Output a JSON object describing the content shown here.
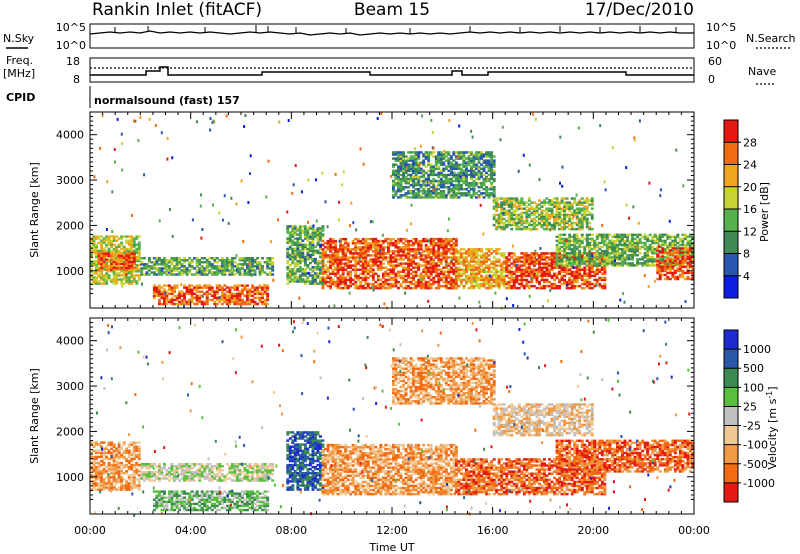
{
  "header": {
    "station": "Rankin Inlet (fitACF)",
    "beam": "Beam 15",
    "date": "17/Dec/2010"
  },
  "summary_panels": {
    "nsky": {
      "label": "N.Sky",
      "ticks": [
        "10^5",
        "10^0"
      ]
    },
    "nsearch": {
      "label": "N.Search",
      "ticks": [
        "10^5",
        "10^0"
      ]
    },
    "freq": {
      "label_line1": "Freq.",
      "label_line2": "[MHz]",
      "ticks": [
        "18",
        "8"
      ]
    },
    "nave": {
      "label": "Nave",
      "ticks": [
        "60",
        "0"
      ]
    },
    "cpid": {
      "label": "CPID",
      "value": "normalsound (fast) 157"
    }
  },
  "chart_data": [
    {
      "type": "heatmap",
      "name": "power",
      "ylabel": "Slant Range [km]",
      "xlabel": "",
      "xlim": [
        "00:00",
        "24:00"
      ],
      "ylim": [
        180,
        4500
      ],
      "yticks": [
        1000,
        2000,
        3000,
        4000
      ],
      "colorbar": {
        "label": "Power [dB]",
        "ticks": [
          4,
          8,
          12,
          16,
          20,
          24,
          28
        ],
        "range": [
          0,
          32
        ],
        "colors": [
          "#0a1fe0",
          "#2a55b0",
          "#3f8a55",
          "#55b04d",
          "#c8d232",
          "#f0a51e",
          "#f26b12",
          "#e41a12"
        ]
      },
      "regions": [
        {
          "t0": 0.0,
          "t1": 2.0,
          "r0": 700,
          "r1": 1750,
          "v": 18
        },
        {
          "t0": 0.3,
          "t1": 1.8,
          "r0": 1000,
          "r1": 1400,
          "v": 27
        },
        {
          "t0": 2.0,
          "t1": 7.2,
          "r0": 900,
          "r1": 1300,
          "v": 13
        },
        {
          "t0": 2.5,
          "t1": 7.0,
          "r0": 250,
          "r1": 700,
          "v": 26
        },
        {
          "t0": 7.8,
          "t1": 9.2,
          "r0": 700,
          "r1": 2000,
          "v": 13
        },
        {
          "t0": 9.2,
          "t1": 14.5,
          "r0": 600,
          "r1": 1700,
          "v": 27
        },
        {
          "t0": 14.5,
          "t1": 16.5,
          "r0": 600,
          "r1": 1500,
          "v": 22
        },
        {
          "t0": 16.5,
          "t1": 20.5,
          "r0": 600,
          "r1": 1400,
          "v": 28
        },
        {
          "t0": 18.5,
          "t1": 24.0,
          "r0": 1100,
          "r1": 1800,
          "v": 14
        },
        {
          "t0": 22.5,
          "t1": 24.0,
          "r0": 800,
          "r1": 1500,
          "v": 27
        },
        {
          "t0": 12.0,
          "t1": 16.0,
          "r0": 2600,
          "r1": 3600,
          "v": 11
        },
        {
          "t0": 16.0,
          "t1": 20.0,
          "r0": 1900,
          "r1": 2600,
          "v": 16
        }
      ]
    },
    {
      "type": "heatmap",
      "name": "velocity",
      "ylabel": "Slant Range [km]",
      "xlabel": "Time UT",
      "xlim": [
        "00:00",
        "24:00"
      ],
      "xticks": [
        "00:00",
        "04:00",
        "08:00",
        "12:00",
        "16:00",
        "20:00",
        "00:00"
      ],
      "ylim": [
        180,
        4500
      ],
      "yticks": [
        1000,
        2000,
        3000,
        4000
      ],
      "colorbar": {
        "label": "Velocity [m s^-1]",
        "ticks": [
          "1000",
          "500",
          "100",
          "25",
          "-25",
          "-100",
          "-500",
          "-1000"
        ],
        "colors": [
          "#1c2ad2",
          "#2b57a8",
          "#3b8a52",
          "#58c03c",
          "#c0c0c0",
          "#f0c896",
          "#f09a46",
          "#f26b12",
          "#e41a12"
        ]
      },
      "regions": [
        {
          "t0": 0.0,
          "t1": 2.0,
          "r0": 700,
          "r1": 1750,
          "v": 6
        },
        {
          "t0": 2.0,
          "t1": 7.2,
          "r0": 900,
          "r1": 1300,
          "v": 4
        },
        {
          "t0": 2.5,
          "t1": 7.0,
          "r0": 250,
          "r1": 700,
          "v": 3
        },
        {
          "t0": 7.8,
          "t1": 9.2,
          "r0": 700,
          "r1": 2000,
          "v": 1
        },
        {
          "t0": 9.2,
          "t1": 14.5,
          "r0": 600,
          "r1": 1700,
          "v": 6
        },
        {
          "t0": 14.5,
          "t1": 20.5,
          "r0": 600,
          "r1": 1400,
          "v": 7
        },
        {
          "t0": 18.5,
          "t1": 24.0,
          "r0": 1100,
          "r1": 1800,
          "v": 7
        },
        {
          "t0": 12.0,
          "t1": 16.0,
          "r0": 2600,
          "r1": 3600,
          "v": 6
        },
        {
          "t0": 16.0,
          "t1": 20.0,
          "r0": 1900,
          "r1": 2600,
          "v": 5
        }
      ]
    }
  ]
}
